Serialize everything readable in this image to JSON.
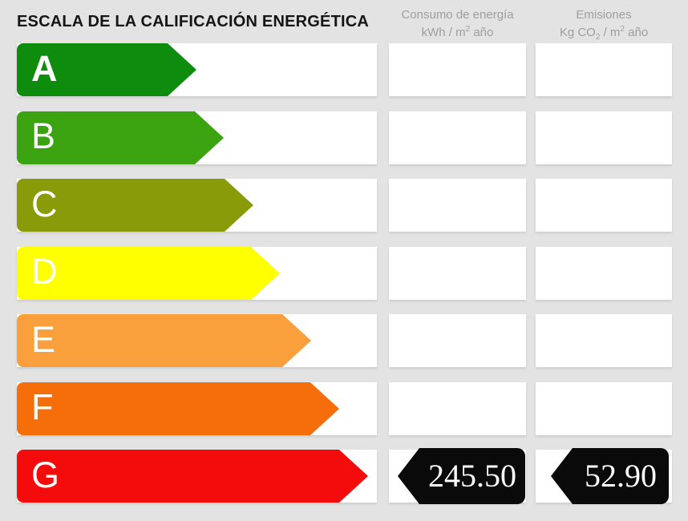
{
  "title": "ESCALA DE LA CALIFICACIÓN ENERGÉTICA",
  "columns": {
    "consumo": {
      "title": "Consumo de energía",
      "unit_pre": "kWh / m",
      "unit_sup": "2",
      "unit_post": " año"
    },
    "emisiones": {
      "title": "Emisiones",
      "unit_pre": "Kg CO",
      "unit_sub": "2",
      "unit_mid": " / m",
      "unit_sup": "2",
      "unit_post": " año"
    }
  },
  "scale": {
    "rows": [
      {
        "letter": "A",
        "color": "#0e8c0e"
      },
      {
        "letter": "B",
        "color": "#3aa30f"
      },
      {
        "letter": "C",
        "color": "#8a9b0a"
      },
      {
        "letter": "D",
        "color": "#ffff00"
      },
      {
        "letter": "E",
        "color": "#f9a03c"
      },
      {
        "letter": "F",
        "color": "#f56e0a"
      },
      {
        "letter": "G",
        "color": "#f40c0c"
      }
    ]
  },
  "values": {
    "rating": "G",
    "consumo": "245.50",
    "emisiones": "52.90"
  },
  "colors": {
    "background": "#e3e3e3",
    "row_background": "#ffffff",
    "badge": "#0a0a0a",
    "header_text": "#9e9e9e",
    "title_text": "#151515"
  },
  "chart_data": {
    "type": "bar",
    "title": "ESCALA DE LA CALIFICACIÓN ENERGÉTICA",
    "categories": [
      "A",
      "B",
      "C",
      "D",
      "E",
      "F",
      "G"
    ],
    "series": [
      {
        "name": "relative_arrow_length_px",
        "values": [
          224,
          258,
          295,
          328,
          367,
          402,
          438
        ]
      }
    ],
    "bar_colors": [
      "#0e8c0e",
      "#3aa30f",
      "#8a9b0a",
      "#ffff00",
      "#f9a03c",
      "#f56e0a",
      "#f40c0c"
    ],
    "column_headers": [
      "Consumo de energía kWh / m² año",
      "Emisiones Kg CO₂ / m² año"
    ],
    "highlighted_category": "G",
    "values": {
      "consumo_kwh_m2_ano": 245.5,
      "emisiones_kg_co2_m2_ano": 52.9
    },
    "layout": {
      "orientation": "horizontal",
      "grid": false,
      "legend": false
    }
  }
}
